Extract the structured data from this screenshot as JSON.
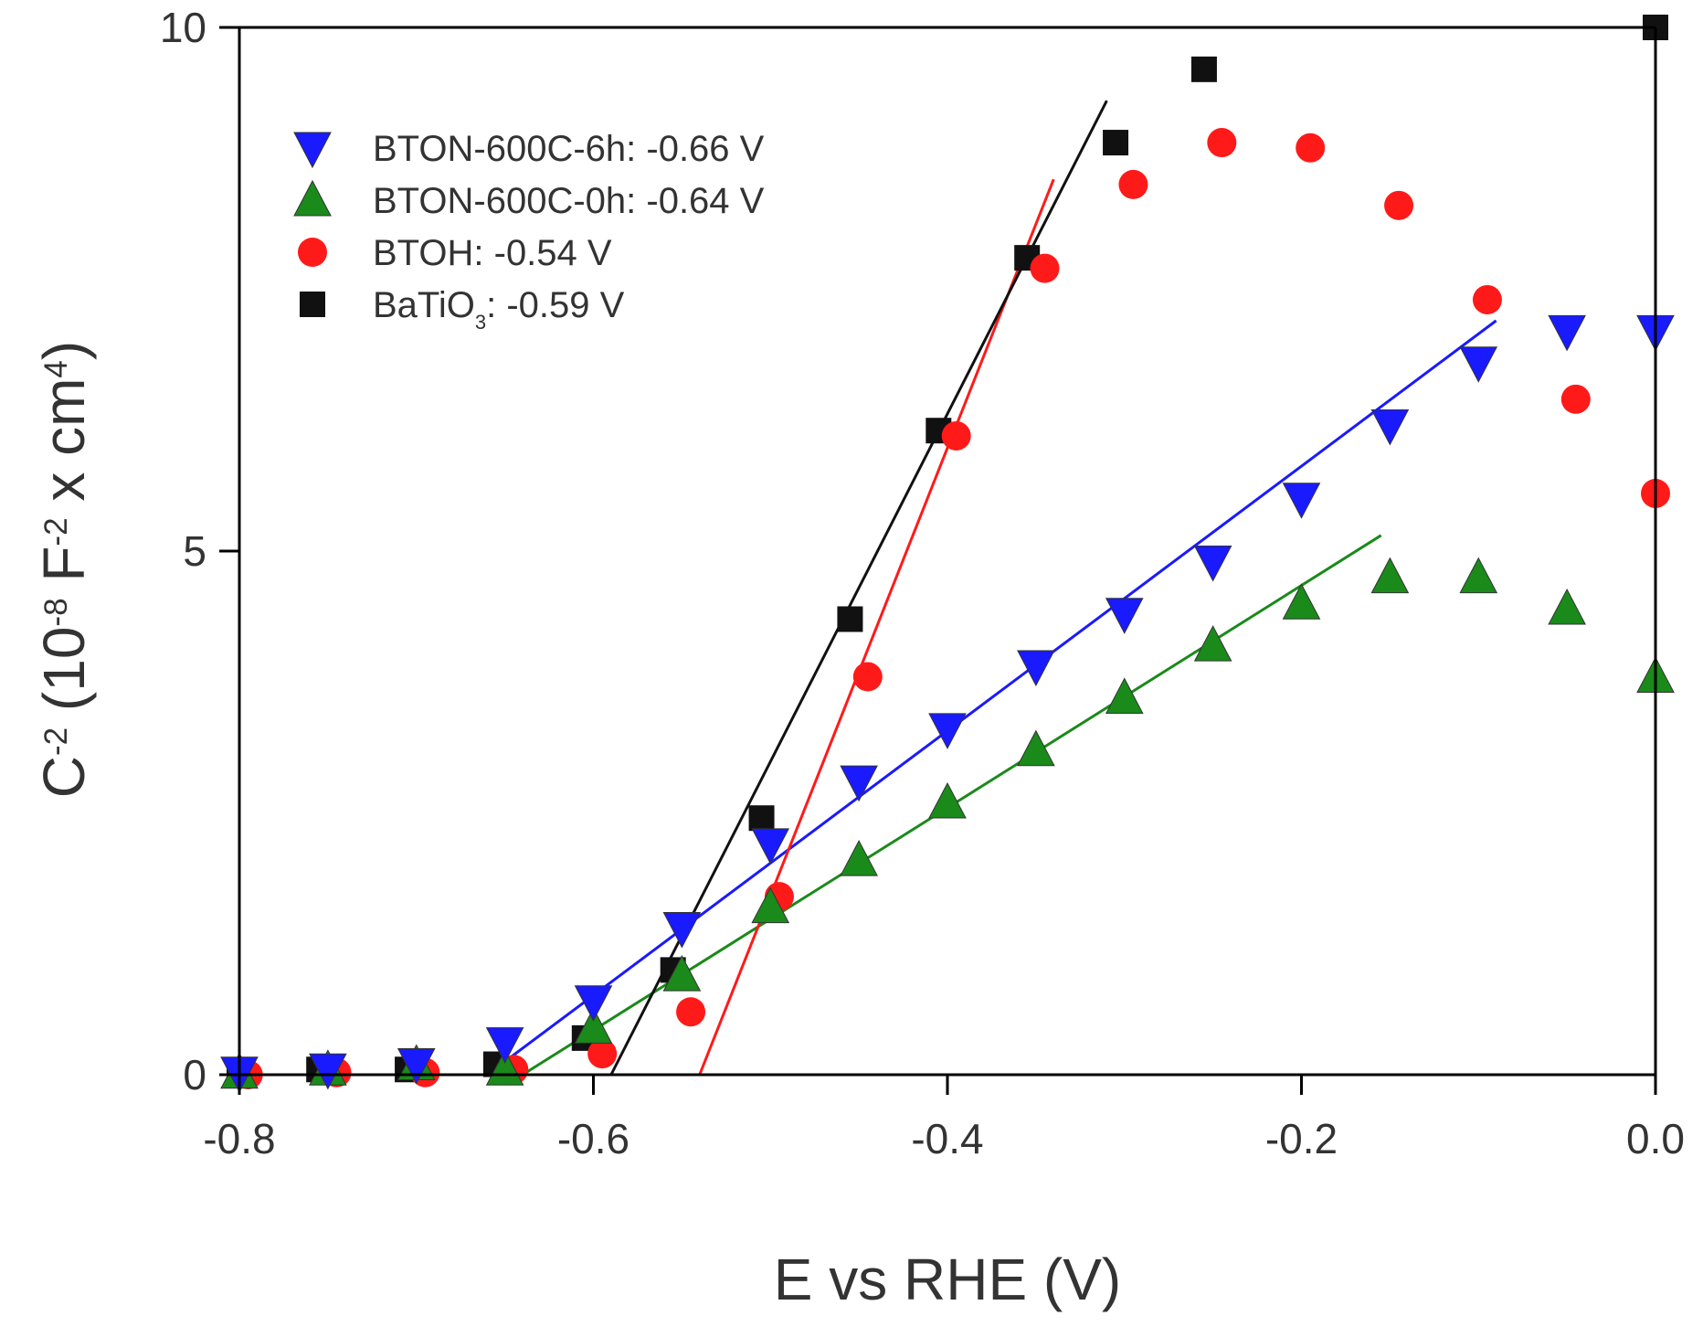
{
  "chart_data": {
    "type": "scatter",
    "title": "",
    "xlabel": "E vs RHE (V)",
    "ylabel": {
      "parts": [
        {
          "text": "C",
          "role": "normal"
        },
        {
          "text": "-2",
          "role": "sup"
        },
        {
          "text": " (10",
          "role": "normal"
        },
        {
          "text": "-8",
          "role": "sup"
        },
        {
          "text": " F",
          "role": "normal"
        },
        {
          "text": "-2",
          "role": "sup"
        },
        {
          "text": " x cm",
          "role": "normal"
        },
        {
          "text": "4",
          "role": "sup"
        },
        {
          "text": ")",
          "role": "normal"
        }
      ]
    },
    "xlim": [
      -0.8,
      0.0
    ],
    "ylim": [
      0,
      10
    ],
    "xticks": [
      {
        "value": -0.8,
        "label": "-0.8"
      },
      {
        "value": -0.6,
        "label": "-0.6"
      },
      {
        "value": -0.4,
        "label": "-0.4"
      },
      {
        "value": -0.2,
        "label": "-0.2"
      },
      {
        "value": 0.0,
        "label": "0.0"
      }
    ],
    "yticks": [
      {
        "value": 0,
        "label": "0"
      },
      {
        "value": 5,
        "label": "5"
      },
      {
        "value": 10,
        "label": "10"
      }
    ],
    "legend_position": "top-left",
    "series": [
      {
        "name": "BTON-600C-6h",
        "marker": "triangle-down",
        "color": "#1a1aff",
        "legend": {
          "parts": [
            {
              "text": "BTON-600C-6h: -0.66 V",
              "role": "normal"
            }
          ]
        },
        "x": [
          -0.8,
          -0.75,
          -0.7,
          -0.65,
          -0.6,
          -0.55,
          -0.5,
          -0.45,
          -0.4,
          -0.35,
          -0.3,
          -0.25,
          -0.2,
          -0.15,
          -0.1,
          -0.05,
          0.0
        ],
        "y": [
          0.02,
          0.05,
          0.1,
          0.3,
          0.7,
          1.4,
          2.2,
          2.8,
          3.3,
          3.9,
          4.4,
          4.9,
          5.5,
          6.2,
          6.8,
          7.1,
          7.1
        ],
        "fit": {
          "x": [
            -0.66,
            -0.09
          ],
          "y": [
            0.0,
            7.2
          ]
        }
      },
      {
        "name": "BTON-600C-0h",
        "marker": "triangle-up",
        "color": "#1a8a1a",
        "legend": {
          "parts": [
            {
              "text": "BTON-600C-0h: -0.64 V",
              "role": "normal"
            }
          ]
        },
        "x": [
          -0.8,
          -0.75,
          -0.7,
          -0.65,
          -0.6,
          -0.55,
          -0.5,
          -0.45,
          -0.4,
          -0.35,
          -0.3,
          -0.25,
          -0.2,
          -0.15,
          -0.1,
          -0.05,
          0.0
        ],
        "y": [
          0.02,
          0.05,
          0.1,
          0.05,
          0.45,
          0.95,
          1.6,
          2.05,
          2.6,
          3.1,
          3.6,
          4.1,
          4.5,
          4.75,
          4.75,
          4.45,
          3.8
        ],
        "fit": {
          "x": [
            -0.64,
            -0.155
          ],
          "y": [
            0.0,
            5.15
          ]
        }
      },
      {
        "name": "BTOH",
        "marker": "circle",
        "color": "#ff1a1a",
        "legend": {
          "parts": [
            {
              "text": "BTOH: -0.54 V",
              "role": "normal"
            }
          ]
        },
        "x": [
          -0.795,
          -0.745,
          -0.695,
          -0.645,
          -0.595,
          -0.545,
          -0.495,
          -0.445,
          -0.395,
          -0.345,
          -0.295,
          -0.245,
          -0.195,
          -0.145,
          -0.095,
          -0.045,
          0.0
        ],
        "y": [
          0.0,
          0.02,
          0.02,
          0.05,
          0.2,
          0.6,
          1.7,
          3.8,
          6.1,
          7.7,
          8.5,
          8.9,
          8.85,
          8.3,
          7.4,
          6.45,
          5.55
        ],
        "fit": {
          "x": [
            -0.54,
            -0.34
          ],
          "y": [
            0.0,
            8.55
          ]
        }
      },
      {
        "name": "BaTiO3",
        "marker": "square",
        "color": "#111111",
        "legend": {
          "parts": [
            {
              "text": "BaTiO",
              "role": "normal"
            },
            {
              "text": "3",
              "role": "sub"
            },
            {
              "text": ": -0.59 V",
              "role": "normal"
            }
          ]
        },
        "x": [
          -0.8,
          -0.755,
          -0.705,
          -0.655,
          -0.605,
          -0.555,
          -0.505,
          -0.455,
          -0.405,
          -0.355,
          -0.305,
          -0.255,
          0.0
        ],
        "y": [
          0.0,
          0.05,
          0.05,
          0.1,
          0.35,
          1.0,
          2.45,
          4.35,
          6.15,
          7.8,
          8.9,
          9.6,
          10.0
        ],
        "fit": {
          "x": [
            -0.59,
            -0.31
          ],
          "y": [
            0.0,
            9.3
          ]
        }
      }
    ]
  }
}
